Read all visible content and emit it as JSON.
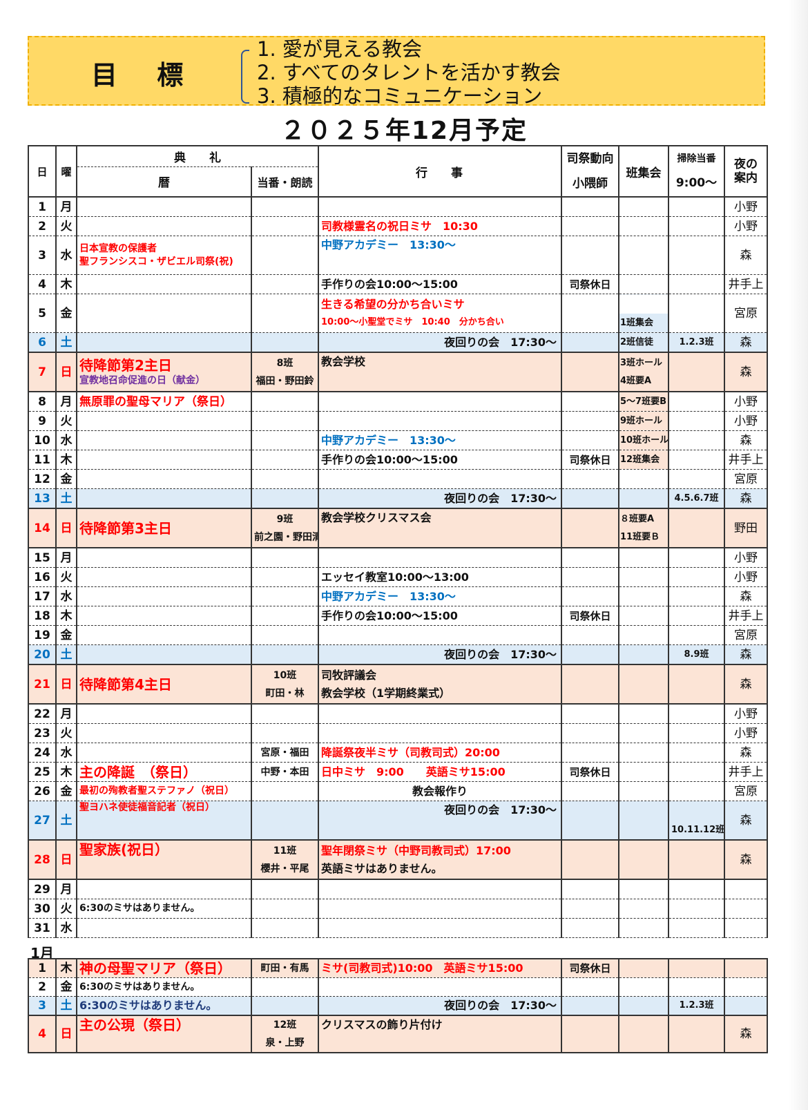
{
  "goals": {
    "title": "目 標",
    "items": [
      "1.  愛が見える教会",
      "2.  すべてのタレントを活かす教会",
      "3.  積極的なコミュニケーション"
    ]
  },
  "schedule_title": "２０２５年12月予定",
  "headers": {
    "day": "日",
    "dow": "曜",
    "liturgy": "典　　礼",
    "calendar": "暦",
    "duty": "当番・朗読",
    "events": "行　　事",
    "priest_top": "司祭動向",
    "priest_bottom": "小隈師",
    "han": "班集会",
    "clean_top": "掃除当番",
    "clean_bottom": "9:00〜",
    "night": "夜の案内"
  },
  "colors": {
    "saturday_bg": "#ddebf7",
    "sunday_bg": "#fce4d6",
    "goal_bg": "#ffd966",
    "red": "#ff0000",
    "blue": "#0070c0",
    "purple": "#7030a0"
  },
  "december": [
    {
      "day": "1",
      "dow": "月",
      "night": "小野"
    },
    {
      "day": "2",
      "dow": "火",
      "events": [
        {
          "t": "司教様霊名の祝日ミサ　10:30",
          "s": "red"
        }
      ],
      "night": "小野"
    },
    {
      "day": "3",
      "dow": "水",
      "tall": true,
      "cal": [
        {
          "t": "日本宣教の保護者",
          "s": "red sm"
        },
        {
          "t": "聖フランシスコ・ザビエル司祭(祝)",
          "s": "red sm"
        }
      ],
      "events": [
        {
          "t": "中野アカデミー　13:30〜",
          "s": "blue"
        }
      ],
      "ev_top": true,
      "night": "森"
    },
    {
      "day": "4",
      "dow": "木",
      "events": [
        {
          "t": "手作りの会10:00〜15:00",
          "s": "black"
        }
      ],
      "priest": "司祭休日",
      "night": "井手上"
    },
    {
      "day": "5",
      "dow": "金",
      "tall": true,
      "events": [
        {
          "t": "生きる希望の分かち合いミサ",
          "s": "red"
        },
        {
          "t": "10:00〜小聖堂でミサ　10:40　分かち合い",
          "s": "red xs"
        }
      ],
      "han": [
        "1班集会"
      ],
      "han_bg": "halfbl",
      "han_bottom": true,
      "night": "宮原"
    },
    {
      "day": "6",
      "dow": "土",
      "type": "sat",
      "events": [
        {
          "t": "夜回りの会　17:30〜",
          "s": "black"
        }
      ],
      "ev_right": true,
      "han": [
        "2班信徒"
      ],
      "han_bg": "bl",
      "clean": "1.2.3班",
      "night": "森"
    },
    {
      "day": "7",
      "dow": "日",
      "type": "sun",
      "tall": true,
      "cal": [
        {
          "t": "待降節第2主日",
          "s": "red lg"
        },
        {
          "t": "宣教地召命促進の日（献金）",
          "s": "purple sm"
        }
      ],
      "duty": [
        "8班",
        "福田・野田鈴"
      ],
      "events": [
        {
          "t": "教会学校",
          "s": "black"
        }
      ],
      "ev_top": true,
      "han": [
        "3班ホール",
        "4班要A"
      ],
      "han_bg": "pk",
      "night": "森"
    },
    {
      "day": "8",
      "dow": "月",
      "cal": [
        {
          "t": "無原罪の聖母マリア（祭日）",
          "s": "red md"
        }
      ],
      "han": [
        "5〜7班要B"
      ],
      "han_bg": "pk",
      "night": "小野"
    },
    {
      "day": "9",
      "dow": "火",
      "han": [
        "9班ホール"
      ],
      "han_bg": "pk",
      "night": "小野"
    },
    {
      "day": "10",
      "dow": "水",
      "events": [
        {
          "t": "中野アカデミー　13:30〜",
          "s": "blue"
        }
      ],
      "han": [
        "10班ホール"
      ],
      "han_bg": "pk",
      "night": "森"
    },
    {
      "day": "11",
      "dow": "木",
      "events": [
        {
          "t": "手作りの会10:00〜15:00",
          "s": "black"
        }
      ],
      "priest": "司祭休日",
      "han": [
        "12班集会"
      ],
      "han_bg": "pk",
      "night": "井手上"
    },
    {
      "day": "12",
      "dow": "金",
      "night": "宮原"
    },
    {
      "day": "13",
      "dow": "土",
      "type": "sat",
      "events": [
        {
          "t": "夜回りの会　17:30〜",
          "s": "black"
        }
      ],
      "ev_right": true,
      "clean": "4.5.6.7班",
      "night": "森"
    },
    {
      "day": "14",
      "dow": "日",
      "type": "sun",
      "tall": true,
      "cal": [
        {
          "t": "待降節第3主日",
          "s": "red lg"
        }
      ],
      "duty": [
        "9班",
        "前之園・野田清"
      ],
      "events": [
        {
          "t": "教会学校クリスマス会",
          "s": "black"
        }
      ],
      "ev_top": true,
      "han": [
        "８班要A",
        "11班要Ｂ"
      ],
      "han_bg": "pk",
      "night": "野田"
    },
    {
      "day": "15",
      "dow": "月",
      "night": "小野"
    },
    {
      "day": "16",
      "dow": "火",
      "events": [
        {
          "t": "エッセイ教室10:00〜13:00",
          "s": "black"
        }
      ],
      "night": "小野"
    },
    {
      "day": "17",
      "dow": "水",
      "events": [
        {
          "t": "中野アカデミー　13:30〜",
          "s": "blue"
        }
      ],
      "night": "森"
    },
    {
      "day": "18",
      "dow": "木",
      "events": [
        {
          "t": "手作りの会10:00〜15:00",
          "s": "black"
        }
      ],
      "priest": "司祭休日",
      "night": "井手上"
    },
    {
      "day": "19",
      "dow": "金",
      "night": "宮原"
    },
    {
      "day": "20",
      "dow": "土",
      "type": "sat",
      "events": [
        {
          "t": "夜回りの会　17:30〜",
          "s": "black"
        }
      ],
      "ev_right": true,
      "clean": "8.9班",
      "night": "森"
    },
    {
      "day": "21",
      "dow": "日",
      "type": "sun",
      "tall": true,
      "cal": [
        {
          "t": "待降節第4主日",
          "s": "red lg"
        }
      ],
      "duty": [
        "10班",
        "町田・林"
      ],
      "events": [
        {
          "t": "司牧評議会",
          "s": "black"
        },
        {
          "t": "教会学校（1学期終業式）",
          "s": "black"
        }
      ],
      "night": "森"
    },
    {
      "day": "22",
      "dow": "月",
      "night": "小野"
    },
    {
      "day": "23",
      "dow": "火",
      "night": "小野"
    },
    {
      "day": "24",
      "dow": "水",
      "duty": [
        "宮原・福田"
      ],
      "events": [
        {
          "t": "降誕祭夜半ミサ（司教司式）20:00",
          "s": "red"
        }
      ],
      "night": "森"
    },
    {
      "day": "25",
      "dow": "木",
      "cal": [
        {
          "t": "主の降誕　（祭日）",
          "s": "red lg"
        }
      ],
      "duty": [
        "中野・本田"
      ],
      "events": [
        {
          "t": "日中ミサ　9:00　　英語ミサ15:00",
          "s": "red"
        }
      ],
      "priest": "司祭休日",
      "night": "井手上"
    },
    {
      "day": "26",
      "dow": "金",
      "cal": [
        {
          "t": "最初の殉教者聖ステファノ（祝日）",
          "s": "red sm"
        }
      ],
      "events": [
        {
          "t": "教会報作り",
          "s": "black"
        }
      ],
      "ev_center": true,
      "night": "宮原"
    },
    {
      "day": "27",
      "dow": "土",
      "type": "sat",
      "tall": true,
      "cal": [
        {
          "t": "聖ヨハネ使徒福音記者（祝日）",
          "s": "red sm"
        }
      ],
      "cal_top": true,
      "events": [
        {
          "t": "夜回りの会　17:30〜",
          "s": "black"
        }
      ],
      "ev_right": true,
      "ev_top": true,
      "clean": "10.11.12班",
      "clean_bottom": true,
      "night": "森"
    },
    {
      "day": "28",
      "dow": "日",
      "type": "sun",
      "tall": true,
      "cal": [
        {
          "t": "聖家族(祝日）",
          "s": "red lg"
        }
      ],
      "cal_top": true,
      "duty": [
        "11班",
        "櫻井・平尾"
      ],
      "events": [
        {
          "t": "聖年閉祭ミサ（中野司教司式）17:00",
          "s": "red"
        },
        {
          "t": "英語ミサはありません。",
          "s": "black"
        }
      ],
      "night": "森"
    },
    {
      "day": "29",
      "dow": "月"
    },
    {
      "day": "30",
      "dow": "火",
      "cal": [
        {
          "t": "6:30のミサはありません。",
          "s": "black sm"
        }
      ]
    },
    {
      "day": "31",
      "dow": "水"
    }
  ],
  "january_label": "1月",
  "january": [
    {
      "day": "1",
      "dow": "木",
      "type": "sunbg",
      "cal": [
        {
          "t": "神の母聖マリア（祭日）",
          "s": "red lg"
        }
      ],
      "duty": [
        "町田・有馬"
      ],
      "events": [
        {
          "t": "ミサ(司教司式)10:00　英語ミサ15:00",
          "s": "red"
        }
      ],
      "priest": "司祭休日"
    },
    {
      "day": "2",
      "dow": "金",
      "cal": [
        {
          "t": "6:30のミサはありません。",
          "s": "black sm"
        }
      ]
    },
    {
      "day": "3",
      "dow": "土",
      "type": "sat",
      "cal": [
        {
          "t": "6:30のミサはありません。",
          "s": "navy"
        }
      ],
      "events": [
        {
          "t": "夜回りの会　17:30〜",
          "s": "black"
        }
      ],
      "ev_right": true,
      "clean": "1.2.3班"
    },
    {
      "day": "4",
      "dow": "日",
      "type": "sun",
      "tall": true,
      "cal": [
        {
          "t": "主の公現（祭日）",
          "s": "red lg"
        }
      ],
      "cal_top": true,
      "duty": [
        "12班",
        "泉・上野"
      ],
      "events": [
        {
          "t": "クリスマスの飾り片付け",
          "s": "black"
        }
      ],
      "ev_top": true,
      "night": "森"
    }
  ]
}
